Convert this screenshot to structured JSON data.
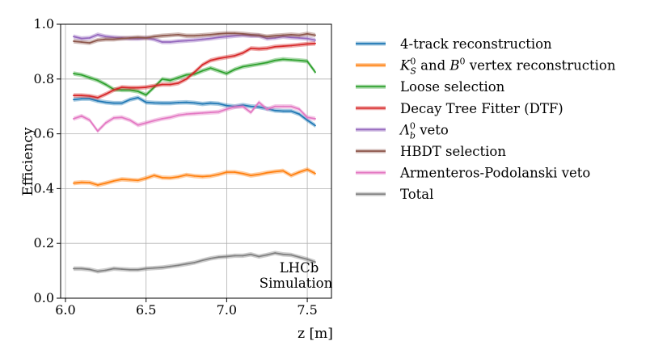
{
  "chart_data": {
    "type": "line",
    "xlabel": "z [m]",
    "ylabel": "Efficiency",
    "xlim": [
      5.97,
      7.65
    ],
    "ylim": [
      0.0,
      1.0
    ],
    "xticks": [
      "6.0",
      "6.5",
      "7.0",
      "7.5"
    ],
    "yticks": [
      "0.0",
      "0.2",
      "0.4",
      "0.6",
      "0.8",
      "1.0"
    ],
    "grid": true,
    "legend_position": "right, outside plot",
    "annotation": [
      "LHCb",
      "Simulation"
    ],
    "x": [
      6.05,
      6.1,
      6.15,
      6.2,
      6.25,
      6.3,
      6.35,
      6.4,
      6.45,
      6.5,
      6.55,
      6.6,
      6.65,
      6.7,
      6.75,
      6.8,
      6.85,
      6.9,
      6.95,
      7.0,
      7.05,
      7.1,
      7.15,
      7.2,
      7.25,
      7.3,
      7.35,
      7.4,
      7.45,
      7.5,
      7.55
    ],
    "series": [
      {
        "name": "4-track reconstruction",
        "color": "#1f77b4",
        "values": [
          0.725,
          0.728,
          0.728,
          0.72,
          0.715,
          0.712,
          0.712,
          0.725,
          0.732,
          0.715,
          0.713,
          0.712,
          0.712,
          0.714,
          0.715,
          0.713,
          0.709,
          0.712,
          0.71,
          0.703,
          0.7,
          0.705,
          0.7,
          0.698,
          0.692,
          0.685,
          0.683,
          0.683,
          0.672,
          0.65,
          0.63
        ]
      },
      {
        "name": "K_S^0 and B^0 vertex reconstruction",
        "color": "#ff7f0e",
        "values": [
          0.42,
          0.423,
          0.422,
          0.413,
          0.42,
          0.428,
          0.434,
          0.432,
          0.43,
          0.438,
          0.448,
          0.44,
          0.439,
          0.443,
          0.45,
          0.446,
          0.444,
          0.446,
          0.452,
          0.46,
          0.46,
          0.455,
          0.448,
          0.452,
          0.458,
          0.462,
          0.465,
          0.448,
          0.46,
          0.47,
          0.455
        ]
      },
      {
        "name": "Loose selection",
        "color": "#2ca02c",
        "values": [
          0.82,
          0.815,
          0.805,
          0.795,
          0.78,
          0.762,
          0.76,
          0.76,
          0.755,
          0.742,
          0.77,
          0.8,
          0.795,
          0.805,
          0.815,
          0.818,
          0.83,
          0.84,
          0.83,
          0.82,
          0.835,
          0.845,
          0.85,
          0.855,
          0.86,
          0.868,
          0.872,
          0.87,
          0.868,
          0.865,
          0.825
        ]
      },
      {
        "name": "Decay Tree Fitter (DTF)",
        "color": "#d62728",
        "values": [
          0.74,
          0.74,
          0.738,
          0.732,
          0.745,
          0.76,
          0.77,
          0.768,
          0.768,
          0.77,
          0.775,
          0.78,
          0.78,
          0.785,
          0.8,
          0.825,
          0.852,
          0.868,
          0.875,
          0.88,
          0.885,
          0.895,
          0.912,
          0.91,
          0.912,
          0.918,
          0.92,
          0.922,
          0.925,
          0.928,
          0.93
        ]
      },
      {
        "name": "Λ_b^0 veto",
        "color": "#9467bd",
        "values": [
          0.955,
          0.948,
          0.95,
          0.962,
          0.955,
          0.952,
          0.95,
          0.948,
          0.947,
          0.95,
          0.945,
          0.935,
          0.935,
          0.938,
          0.94,
          0.942,
          0.945,
          0.948,
          0.952,
          0.955,
          0.958,
          0.96,
          0.958,
          0.958,
          0.948,
          0.95,
          0.955,
          0.952,
          0.95,
          0.948,
          0.942
        ]
      },
      {
        "name": "HBDT selection",
        "color": "#8c564b",
        "values": [
          0.938,
          0.935,
          0.932,
          0.942,
          0.945,
          0.945,
          0.948,
          0.95,
          0.952,
          0.95,
          0.955,
          0.958,
          0.96,
          0.962,
          0.958,
          0.958,
          0.96,
          0.962,
          0.965,
          0.967,
          0.967,
          0.965,
          0.962,
          0.96,
          0.955,
          0.958,
          0.96,
          0.962,
          0.96,
          0.965,
          0.96
        ]
      },
      {
        "name": "Armenteros-Podolanski veto",
        "color": "#e377c2",
        "values": [
          0.655,
          0.665,
          0.65,
          0.61,
          0.64,
          0.658,
          0.66,
          0.65,
          0.632,
          0.64,
          0.648,
          0.655,
          0.66,
          0.668,
          0.672,
          0.674,
          0.676,
          0.678,
          0.68,
          0.69,
          0.698,
          0.7,
          0.678,
          0.715,
          0.69,
          0.7,
          0.7,
          0.7,
          0.69,
          0.66,
          0.655
        ]
      },
      {
        "name": "Total",
        "color": "#7f7f7f",
        "values": [
          0.108,
          0.108,
          0.105,
          0.098,
          0.102,
          0.108,
          0.106,
          0.104,
          0.104,
          0.108,
          0.11,
          0.112,
          0.116,
          0.12,
          0.125,
          0.13,
          0.138,
          0.145,
          0.15,
          0.152,
          0.155,
          0.155,
          0.16,
          0.152,
          0.158,
          0.165,
          0.16,
          0.158,
          0.15,
          0.142,
          0.132
        ]
      }
    ]
  }
}
